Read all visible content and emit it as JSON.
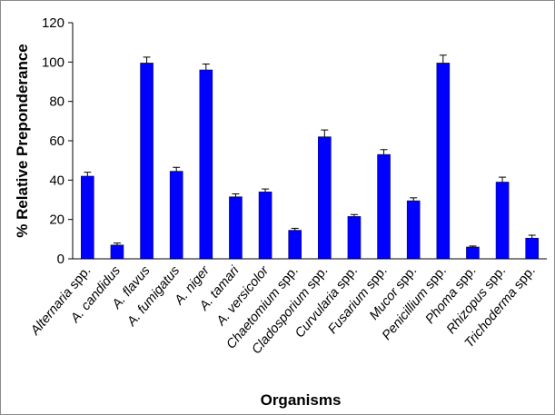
{
  "chart_data": {
    "type": "bar",
    "title": "",
    "xlabel": "Organisms",
    "ylabel": "% Relative Preponderance",
    "ylim": [
      0,
      120
    ],
    "yticks": [
      0,
      20,
      40,
      60,
      80,
      100,
      120
    ],
    "grid": false,
    "bar_color": "#0000ff",
    "categories": [
      {
        "italic": "Alternaria",
        "rest": " spp."
      },
      {
        "italic": "A. candidus",
        "rest": ""
      },
      {
        "italic": "A. flavus",
        "rest": ""
      },
      {
        "italic": "A. fumigatus",
        "rest": ""
      },
      {
        "italic": "A. niger",
        "rest": ""
      },
      {
        "italic": "A. tamari",
        "rest": ""
      },
      {
        "italic": "A. versicolor",
        "rest": ""
      },
      {
        "italic": "Chaetomium",
        "rest": " spp."
      },
      {
        "italic": "Cladosporium",
        "rest": " spp."
      },
      {
        "italic": "Curvularia",
        "rest": " spp."
      },
      {
        "italic": "Fusarium",
        "rest": " spp."
      },
      {
        "italic": "Mucor",
        "rest": " spp."
      },
      {
        "italic": "Penicillium",
        "rest": " spp."
      },
      {
        "italic": "Phoma",
        "rest": " spp."
      },
      {
        "italic": "Rhizopus",
        "rest": " spp."
      },
      {
        "italic": "Trichoderma",
        "rest": " spp."
      }
    ],
    "values": [
      42,
      7,
      99.5,
      44.5,
      96,
      31.5,
      34,
      14.5,
      62,
      21.5,
      53,
      29.5,
      99.5,
      6,
      39,
      10.5
    ],
    "errors": [
      2,
      1,
      3,
      2,
      3,
      1.5,
      1.5,
      1,
      3.5,
      1,
      2.5,
      1.5,
      4,
      0.5,
      2.5,
      1.5
    ]
  }
}
